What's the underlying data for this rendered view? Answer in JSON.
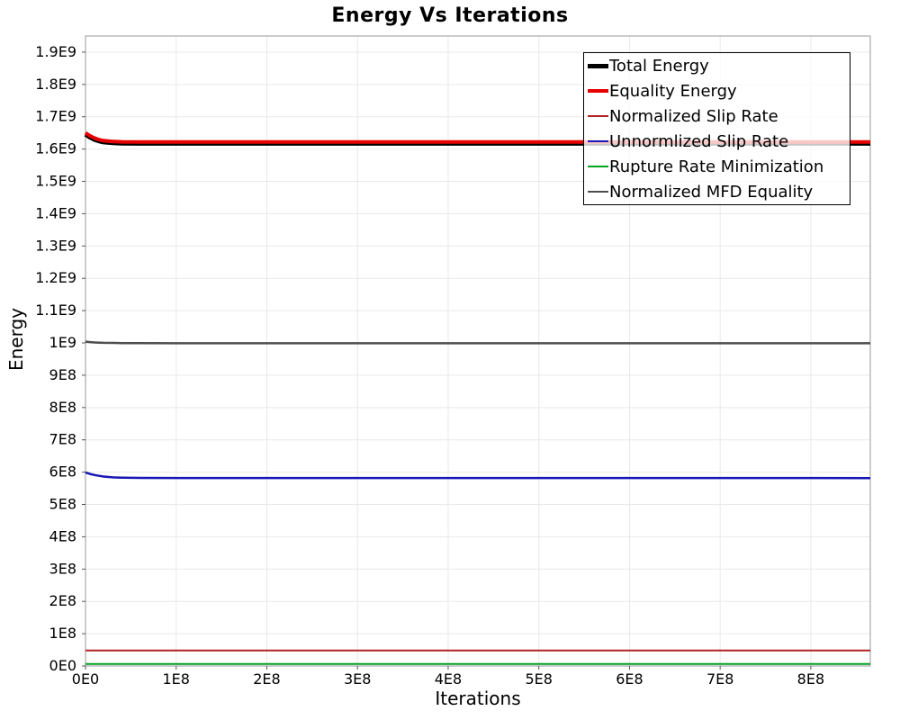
{
  "chart_data": {
    "type": "line",
    "title": "Energy Vs Iterations",
    "xlabel": "Iterations",
    "ylabel": "Energy",
    "x_range": [
      0,
      865600000
    ],
    "y_range": [
      0,
      1950000000
    ],
    "grid": true,
    "grid_color": "#e9e9e9",
    "border_color": "#9a9a9a",
    "tick_color": "#555555",
    "legend_position": "top-right",
    "x_ticks": [
      {
        "value": 0,
        "label": "0E0"
      },
      {
        "value": 100000000,
        "label": "1E8"
      },
      {
        "value": 200000000,
        "label": "2E8"
      },
      {
        "value": 300000000,
        "label": "3E8"
      },
      {
        "value": 400000000,
        "label": "4E8"
      },
      {
        "value": 500000000,
        "label": "5E8"
      },
      {
        "value": 600000000,
        "label": "6E8"
      },
      {
        "value": 700000000,
        "label": "7E8"
      },
      {
        "value": 800000000,
        "label": "8E8"
      }
    ],
    "y_ticks": [
      {
        "value": 0,
        "label": "0E0"
      },
      {
        "value": 100000000,
        "label": "1E8"
      },
      {
        "value": 200000000,
        "label": "2E8"
      },
      {
        "value": 300000000,
        "label": "3E8"
      },
      {
        "value": 400000000,
        "label": "4E8"
      },
      {
        "value": 500000000,
        "label": "5E8"
      },
      {
        "value": 600000000,
        "label": "6E8"
      },
      {
        "value": 700000000,
        "label": "7E8"
      },
      {
        "value": 800000000,
        "label": "8E8"
      },
      {
        "value": 900000000,
        "label": "9E8"
      },
      {
        "value": 1000000000,
        "label": "1E9"
      },
      {
        "value": 1100000000,
        "label": "1.1E9"
      },
      {
        "value": 1200000000,
        "label": "1.2E9"
      },
      {
        "value": 1300000000,
        "label": "1.3E9"
      },
      {
        "value": 1400000000,
        "label": "1.4E9"
      },
      {
        "value": 1500000000,
        "label": "1.5E9"
      },
      {
        "value": 1600000000,
        "label": "1.6E9"
      },
      {
        "value": 1700000000,
        "label": "1.7E9"
      },
      {
        "value": 1800000000,
        "label": "1.8E9"
      },
      {
        "value": 1900000000,
        "label": "1.9E9"
      }
    ],
    "x": [
      0,
      5000000,
      10000000,
      15000000,
      20000000,
      30000000,
      40000000,
      60000000,
      100000000,
      200000000,
      300000000,
      400000000,
      500000000,
      600000000,
      700000000,
      800000000,
      865600000
    ],
    "series": [
      {
        "name": "Total Energy",
        "color": "#000000",
        "stroke_width": 5,
        "values": [
          1645500000,
          1636500000,
          1629500000,
          1624500000,
          1621500000,
          1619000000,
          1618000000,
          1617500000,
          1617500000,
          1617500000,
          1617500000,
          1617500000,
          1617500000,
          1617500000,
          1617500000,
          1617500000,
          1617500000
        ]
      },
      {
        "name": "Equality Energy",
        "color": "#e60000",
        "stroke_width": 4,
        "values": [
          1650000000,
          1641000000,
          1634000000,
          1629000000,
          1626000000,
          1623500000,
          1622500000,
          1622000000,
          1622000000,
          1622000000,
          1622000000,
          1622000000,
          1622000000,
          1622000000,
          1622000000,
          1622000000,
          1622000000
        ]
      },
      {
        "name": "Normalized Slip Rate",
        "color": "#b22222",
        "stroke_width": 2,
        "values": [
          48000000,
          48000000,
          48000000,
          48000000,
          48000000,
          48000000,
          48000000,
          48000000,
          48000000,
          48000000,
          48000000,
          48000000,
          48000000,
          48000000,
          48000000,
          48000000,
          48000000
        ]
      },
      {
        "name": "Unnormlized Slip Rate",
        "color": "#1616b6",
        "stroke_width": 2.5,
        "values": [
          599000000,
          594500000,
          591000000,
          588500000,
          586500000,
          584000000,
          583000000,
          582200000,
          582000000,
          582000000,
          582000000,
          582000000,
          582000000,
          582000000,
          582000000,
          582000000,
          581500000
        ]
      },
      {
        "name": "Rupture Rate Minimization",
        "color": "#00a020",
        "stroke_width": 2,
        "values": [
          6000000,
          6000000,
          6000000,
          6000000,
          6000000,
          6000000,
          6000000,
          6000000,
          6000000,
          6000000,
          6000000,
          6000000,
          6000000,
          6000000,
          6000000,
          6000000,
          6000000
        ]
      },
      {
        "name": "Normalized MFD Equality",
        "color": "#4d4d4d",
        "stroke_width": 2.5,
        "values": [
          1004000000,
          1002500000,
          1001500000,
          1000800000,
          1000400000,
          1000000000,
          999500000,
          999200000,
          999000000,
          999000000,
          999000000,
          999000000,
          999000000,
          999000000,
          999000000,
          999000000,
          999000000
        ]
      }
    ]
  }
}
